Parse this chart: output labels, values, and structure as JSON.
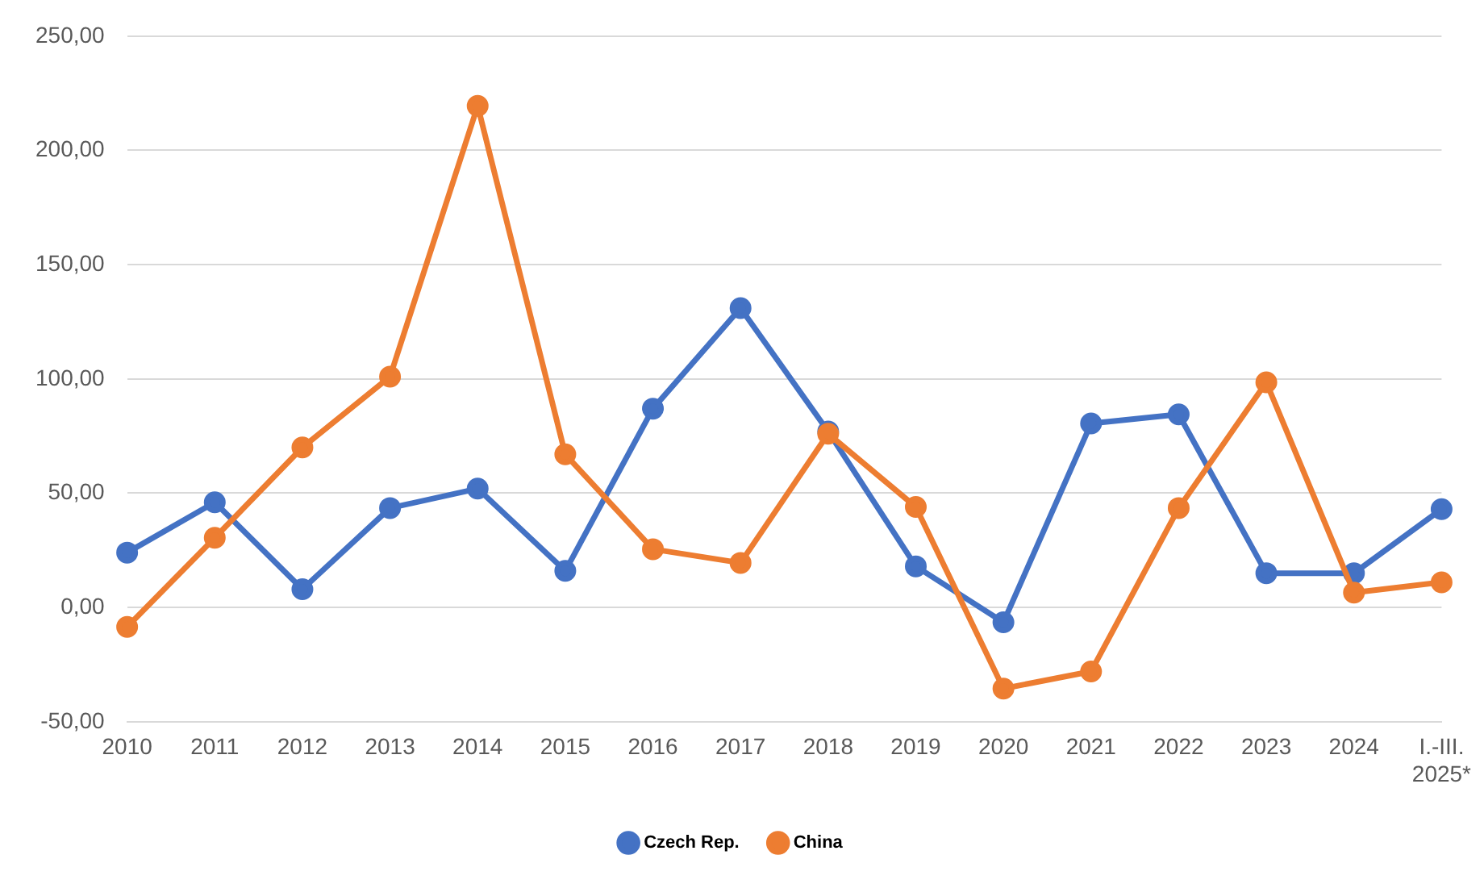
{
  "chart_data": {
    "type": "line",
    "categories": [
      "2010",
      "2011",
      "2012",
      "2013",
      "2014",
      "2015",
      "2016",
      "2017",
      "2018",
      "2019",
      "2020",
      "2021",
      "2022",
      "2023",
      "2024",
      "I.-III. 2025*"
    ],
    "series": [
      {
        "name": "Czech Rep.",
        "color": "#4472c4",
        "values": [
          24,
          46,
          8,
          43.5,
          52,
          16,
          87,
          131,
          77,
          18,
          -6.5,
          80.5,
          84.5,
          15,
          15,
          43
        ]
      },
      {
        "name": "China",
        "color": "#ed7d31",
        "values": [
          -8.5,
          30.5,
          70,
          101,
          219.5,
          67,
          25.5,
          19.5,
          76,
          44,
          -35.5,
          -28,
          43.5,
          98.5,
          6.5,
          11
        ]
      }
    ],
    "ylim": [
      -50,
      250
    ],
    "yticks": [
      {
        "value": -50,
        "label": "-50,00"
      },
      {
        "value": 0,
        "label": "0,00"
      },
      {
        "value": 50,
        "label": "50,00"
      },
      {
        "value": 100,
        "label": "100,00"
      },
      {
        "value": 150,
        "label": "150,00"
      },
      {
        "value": 200,
        "label": "200,00"
      },
      {
        "value": 250,
        "label": "250,00"
      }
    ],
    "grid": "y",
    "legend": "bottom",
    "marker": "circle",
    "line_style": "solid"
  }
}
